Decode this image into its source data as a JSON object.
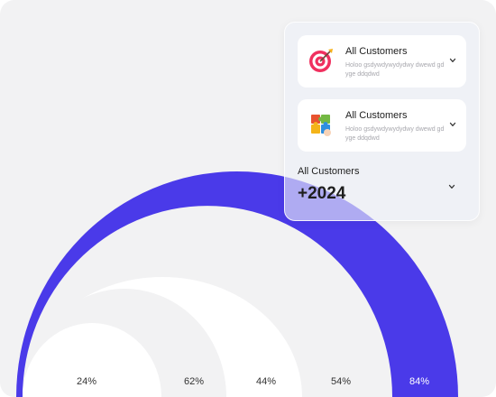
{
  "colors": {
    "accent": "#4a3ae9",
    "ring": "#ffffff",
    "gap": "#f2f2f3"
  },
  "cards": [
    {
      "icon": "target-icon",
      "title": "All Customers",
      "description": "Holoo gsdywdywydydwy dwewd gdyge ddqdwd"
    },
    {
      "icon": "puzzle-icon",
      "title": "All Customers",
      "description": "Holoo gsdywdywydydwy dwewd gdyge ddqdwd"
    }
  ],
  "summary": {
    "label": "All Customers",
    "value": "+2024"
  },
  "percentages": [
    "24%",
    "62%",
    "44%",
    "54%",
    "84%"
  ]
}
